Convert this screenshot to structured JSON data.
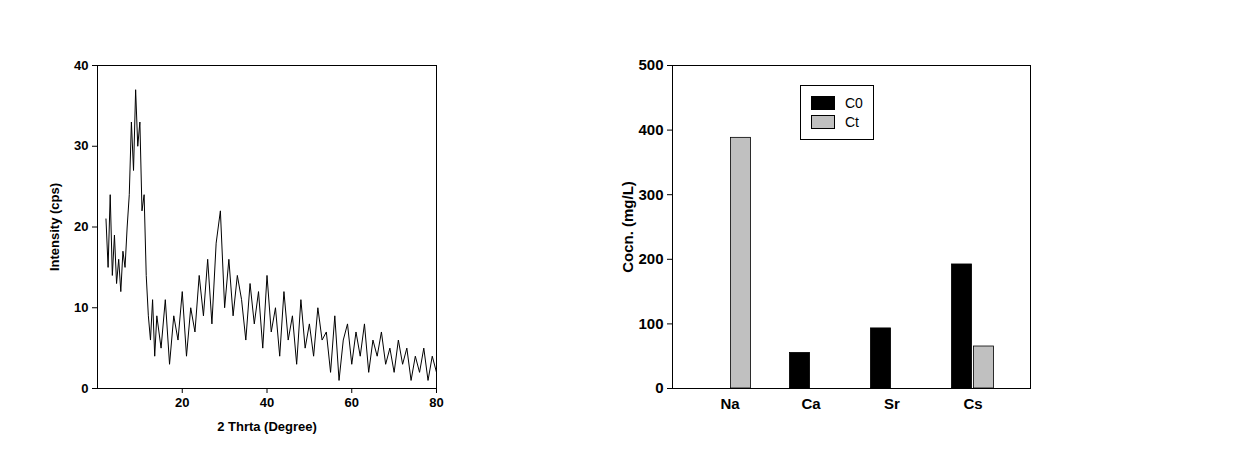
{
  "chart_data": [
    {
      "type": "line",
      "x_label": "2 Thrta (Degree)",
      "y_label": "Intensity (cps)",
      "x": [
        2,
        2.5,
        3,
        3.5,
        4,
        4.5,
        5,
        5.5,
        6,
        6.5,
        7,
        7.5,
        8,
        8.5,
        9,
        9.5,
        10,
        10.5,
        11,
        11.5,
        12,
        12.5,
        13,
        13.5,
        14,
        15,
        16,
        17,
        18,
        19,
        20,
        21,
        22,
        23,
        24,
        25,
        26,
        27,
        28,
        29,
        30,
        31,
        32,
        33,
        34,
        35,
        36,
        37,
        38,
        39,
        40,
        41,
        42,
        43,
        44,
        45,
        46,
        47,
        48,
        49,
        50,
        51,
        52,
        53,
        54,
        55,
        56,
        57,
        58,
        59,
        60,
        61,
        62,
        63,
        64,
        65,
        66,
        67,
        68,
        69,
        70,
        71,
        72,
        73,
        74,
        75,
        76,
        77,
        78,
        79,
        80
      ],
      "values": [
        21,
        15,
        24,
        14,
        19,
        13,
        16,
        12,
        17,
        15,
        20,
        24,
        33,
        27,
        37,
        30,
        33,
        22,
        24,
        14,
        9,
        6,
        11,
        4,
        9,
        5,
        11,
        3,
        9,
        6,
        12,
        4,
        10,
        7,
        14,
        9,
        16,
        8,
        18,
        22,
        10,
        16,
        9,
        14,
        11,
        6,
        13,
        8,
        12,
        5,
        14,
        7,
        10,
        4,
        12,
        6,
        9,
        3,
        11,
        5,
        8,
        4,
        10,
        6,
        7,
        2,
        9,
        1,
        6,
        8,
        3,
        7,
        4,
        8,
        2,
        6,
        4,
        7,
        3,
        5,
        2,
        6,
        3,
        5,
        1,
        4,
        2,
        5,
        1,
        4,
        2
      ],
      "color": "#000000",
      "xlim": [
        0,
        80
      ],
      "xticks": [
        20,
        40,
        60,
        80
      ],
      "ylim": [
        0,
        40
      ],
      "yticks": [
        0,
        10,
        20,
        30,
        40
      ]
    },
    {
      "type": "bar",
      "y_label": "Cocn. (mg/L)",
      "categories": [
        "Na",
        "Ca",
        "Sr",
        "Cs"
      ],
      "series": [
        {
          "name": "C0",
          "color": "#000000",
          "values": [
            0,
            55,
            93,
            192
          ]
        },
        {
          "name": "Ct",
          "color": "#c0c0c0",
          "values": [
            388,
            0,
            0,
            65
          ]
        }
      ],
      "ylim": [
        0,
        500
      ],
      "yticks": [
        0,
        100,
        200,
        300,
        400,
        500
      ],
      "legend": "top"
    }
  ]
}
